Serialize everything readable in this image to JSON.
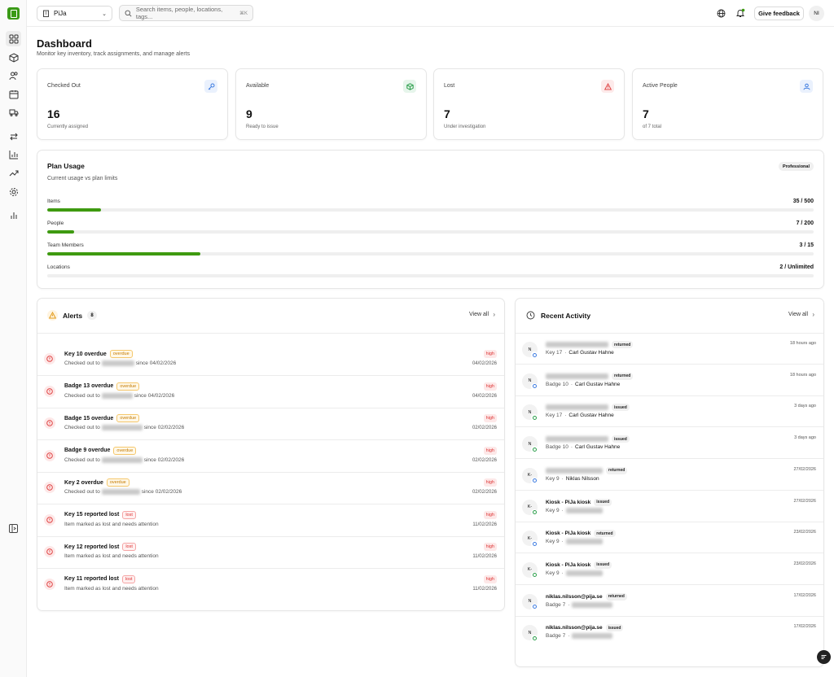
{
  "workspace": {
    "name": "PiJa"
  },
  "search": {
    "placeholder": "Search items, people, locations, tags...",
    "shortcut": "⌘K"
  },
  "topbar": {
    "feedback_label": "Give feedback",
    "avatar_initials": "NI"
  },
  "page": {
    "title": "Dashboard",
    "subtitle": "Monitor key inventory, track assignments, and manage alerts"
  },
  "stats": [
    {
      "label": "Checked Out",
      "value": "16",
      "sub": "Currently assigned",
      "icon": "key-icon",
      "color": "#3c7be0"
    },
    {
      "label": "Available",
      "value": "9",
      "sub": "Ready to issue",
      "icon": "package-icon",
      "color": "#2a9d4a"
    },
    {
      "label": "Lost",
      "value": "7",
      "sub": "Under investigation",
      "icon": "warning-icon",
      "color": "#e04646"
    },
    {
      "label": "Active People",
      "value": "7",
      "sub": "of 7 total",
      "icon": "user-icon",
      "color": "#3c7be0"
    }
  ],
  "plan": {
    "title": "Plan Usage",
    "subtitle": "Current usage vs plan limits",
    "badge": "Professional",
    "rows": [
      {
        "label": "Items",
        "value": "35 / 500",
        "fraction": 0.07
      },
      {
        "label": "People",
        "value": "7 / 200",
        "fraction": 0.035
      },
      {
        "label": "Team Members",
        "value": "3 / 15",
        "fraction": 0.2
      },
      {
        "label": "Locations",
        "value": "2 / Unlimited",
        "fraction": 0
      }
    ]
  },
  "alerts": {
    "title": "Alerts",
    "count": "8",
    "view_all": "View all",
    "items": [
      {
        "title": "Key 10 overdue",
        "badge": "overdue",
        "prefix": "Checked out to",
        "suffix": "since 04/02/2026",
        "priority": "high",
        "date": "04/02/2026"
      },
      {
        "title": "Badge 13 overdue",
        "badge": "overdue",
        "prefix": "Checked out to",
        "suffix": "since 04/02/2026",
        "priority": "high",
        "date": "04/02/2026"
      },
      {
        "title": "Badge 15 overdue",
        "badge": "overdue",
        "prefix": "Checked out to",
        "suffix": "since 02/02/2026",
        "priority": "high",
        "date": "02/02/2026"
      },
      {
        "title": "Badge 9 overdue",
        "badge": "overdue",
        "prefix": "Checked out to",
        "suffix": "since 02/02/2026",
        "priority": "high",
        "date": "02/02/2026"
      },
      {
        "title": "Key 2 overdue",
        "badge": "overdue",
        "prefix": "Checked out to",
        "suffix": "since 02/02/2026",
        "priority": "high",
        "date": "02/02/2026"
      },
      {
        "title": "Key 15 reported lost",
        "badge": "lost",
        "prefix": "Item marked as lost and needs attention",
        "suffix": "",
        "priority": "high",
        "date": "11/02/2026"
      },
      {
        "title": "Key 12 reported lost",
        "badge": "lost",
        "prefix": "Item marked as lost and needs attention",
        "suffix": "",
        "priority": "high",
        "date": "11/02/2026"
      },
      {
        "title": "Key 11 reported lost",
        "badge": "lost",
        "prefix": "Item marked as lost and needs attention",
        "suffix": "",
        "priority": "high",
        "date": "11/02/2026"
      }
    ]
  },
  "activity": {
    "title": "Recent Activity",
    "view_all": "View all",
    "items": [
      {
        "initials": "N",
        "actor": "",
        "action": "returned",
        "item": "Key 17",
        "person": "Carl Gustav Hahne",
        "time": "18 hours ago"
      },
      {
        "initials": "N",
        "actor": "",
        "action": "returned",
        "item": "Badge 10",
        "person": "Carl Gustav Hahne",
        "time": "18 hours ago"
      },
      {
        "initials": "N",
        "actor": "",
        "action": "issued",
        "item": "Key 17",
        "person": "Carl Gustav Hahne",
        "time": "3 days ago"
      },
      {
        "initials": "N",
        "actor": "",
        "action": "issued",
        "item": "Badge 10",
        "person": "Carl Gustav Hahne",
        "time": "3 days ago"
      },
      {
        "initials": "K-",
        "actor": "",
        "action": "returned",
        "item": "Key 9",
        "person": "Niklas Nilsson",
        "time": "27/02/2026"
      },
      {
        "initials": "K-",
        "actor": "Kiosk - PiJa kiosk",
        "action": "issued",
        "item": "Key 9",
        "person": "",
        "time": "27/02/2026"
      },
      {
        "initials": "K-",
        "actor": "Kiosk - PiJa kiosk",
        "action": "returned",
        "item": "Key 9",
        "person": "",
        "time": "23/02/2026"
      },
      {
        "initials": "K-",
        "actor": "Kiosk - PiJa kiosk",
        "action": "issued",
        "item": "Key 9",
        "person": "",
        "time": "23/02/2026"
      },
      {
        "initials": "N",
        "actor": "niklas.nilsson@pija.se",
        "action": "returned",
        "item": "Badge 7",
        "person": "",
        "time": "17/02/2026"
      },
      {
        "initials": "N",
        "actor": "niklas.nilsson@pija.se",
        "action": "issued",
        "item": "Badge 7",
        "person": "",
        "time": "17/02/2026"
      }
    ]
  },
  "sidebar": {
    "items": [
      {
        "icon": "dashboard-icon"
      },
      {
        "icon": "box-icon"
      },
      {
        "icon": "people-icon"
      },
      {
        "icon": "calendar-icon"
      },
      {
        "icon": "truck-icon"
      },
      {
        "icon": "transfer-icon"
      },
      {
        "icon": "bar-chart-icon"
      },
      {
        "icon": "trend-icon"
      },
      {
        "icon": "settings-icon"
      },
      {
        "icon": "reports-icon"
      }
    ]
  }
}
